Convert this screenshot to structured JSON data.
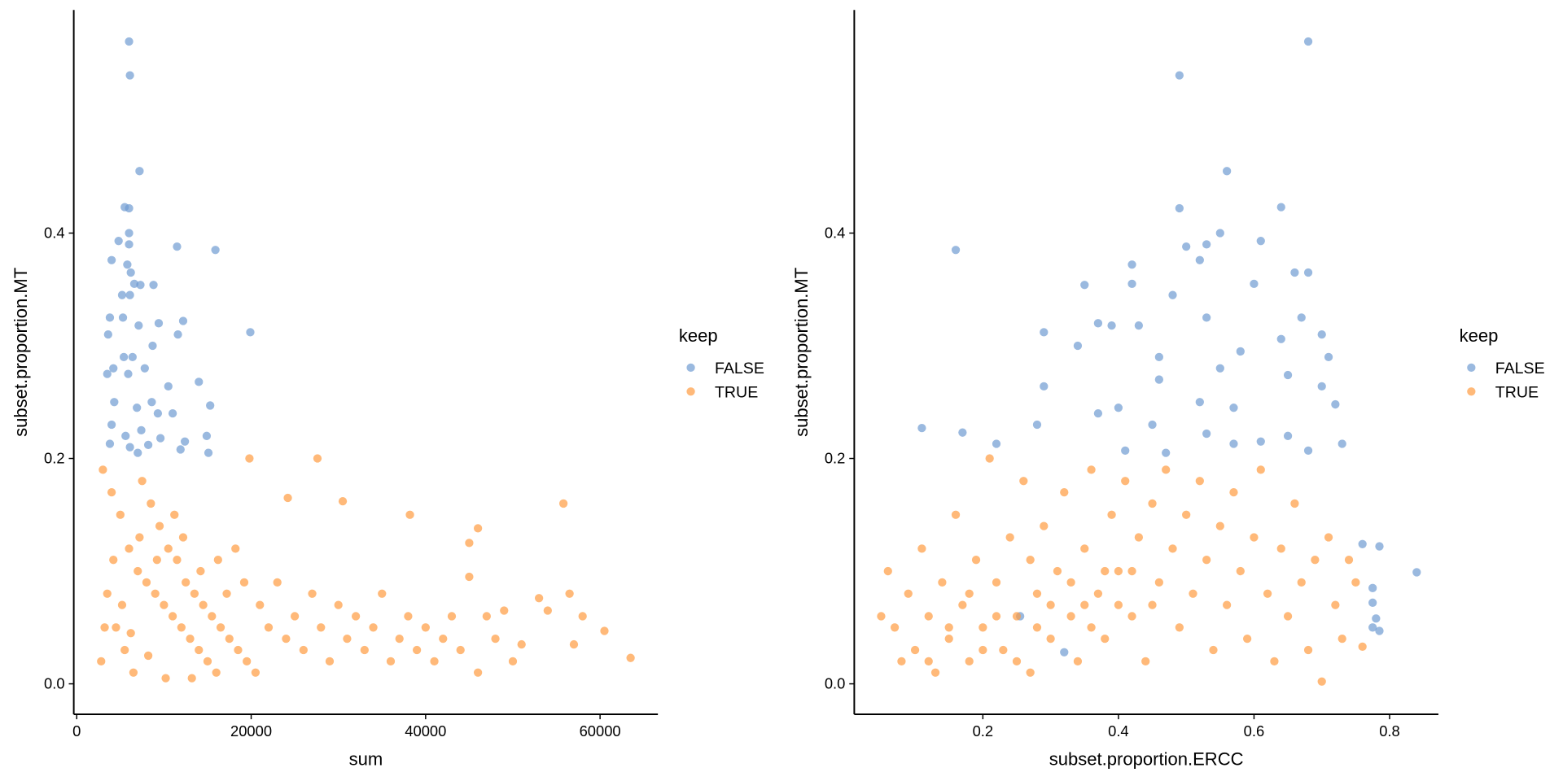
{
  "chart_data": [
    {
      "type": "scatter",
      "x_label": "sum",
      "y_label": "subset.proportion.MT",
      "legend_title": "keep",
      "xlim": [
        -340,
        66630
      ],
      "ylim": [
        -0.027,
        0.598
      ],
      "xticks": [
        0,
        20000,
        40000,
        60000
      ],
      "yticks": [
        {
          "value": 0,
          "label": "0.0"
        },
        0.2,
        0.4
      ],
      "grid": false,
      "series": [
        {
          "name": "FALSE",
          "color": "#6f9bd1",
          "x": [
            6000,
            6100,
            7200,
            5500,
            6000,
            4800,
            6000,
            11500,
            15900,
            6000,
            4000,
            5800,
            6200,
            6600,
            7300,
            8800,
            5200,
            6100,
            3800,
            5300,
            7100,
            9400,
            12200,
            19900,
            3600,
            11600,
            8700,
            5400,
            6400,
            4200,
            5900,
            7800,
            14000,
            3500,
            10500,
            4300,
            8600,
            6900,
            15300,
            9300,
            11000,
            4000,
            7400,
            12400,
            5600,
            14900,
            3800,
            6100,
            8200,
            11900,
            15100,
            7000,
            9600
          ],
          "values": [
            0.57,
            0.54,
            0.455,
            0.423,
            0.422,
            0.393,
            0.4,
            0.388,
            0.385,
            0.39,
            0.376,
            0.372,
            0.365,
            0.355,
            0.354,
            0.354,
            0.345,
            0.345,
            0.325,
            0.325,
            0.318,
            0.32,
            0.322,
            0.312,
            0.31,
            0.31,
            0.3,
            0.29,
            0.29,
            0.28,
            0.275,
            0.28,
            0.268,
            0.275,
            0.264,
            0.25,
            0.25,
            0.245,
            0.247,
            0.24,
            0.24,
            0.23,
            0.225,
            0.215,
            0.22,
            0.22,
            0.213,
            0.21,
            0.212,
            0.208,
            0.205,
            0.205,
            0.218
          ]
        },
        {
          "name": "TRUE",
          "color": "#ff9b40",
          "x": [
            3000,
            4000,
            5000,
            6000,
            7000,
            8000,
            9000,
            10000,
            11000,
            12000,
            13000,
            14000,
            15000,
            16000,
            3500,
            4500,
            5500,
            6500,
            7500,
            8500,
            9500,
            10500,
            11500,
            12500,
            13500,
            14500,
            15500,
            16500,
            17500,
            18500,
            19500,
            20500,
            21000,
            22000,
            23000,
            24000,
            25000,
            26000,
            27000,
            28000,
            29000,
            30000,
            31000,
            32000,
            33000,
            34000,
            35000,
            36000,
            37000,
            38000,
            39000,
            40000,
            41000,
            42000,
            43000,
            44000,
            45000,
            46000,
            47000,
            48000,
            49000,
            50000,
            51000,
            53000,
            54000,
            55800,
            56500,
            57000,
            58000,
            60500,
            63500,
            38200,
            46000,
            45000,
            27600,
            19800,
            30500,
            24200,
            2800,
            3200,
            4200,
            5200,
            6200,
            7200,
            8200,
            9200,
            10200,
            11200,
            12200,
            13200,
            14200,
            16200,
            17200,
            18200,
            19200
          ],
          "values": [
            0.19,
            0.17,
            0.15,
            0.12,
            0.1,
            0.09,
            0.08,
            0.07,
            0.06,
            0.05,
            0.04,
            0.03,
            0.02,
            0.01,
            0.08,
            0.05,
            0.03,
            0.01,
            0.18,
            0.16,
            0.14,
            0.12,
            0.11,
            0.09,
            0.08,
            0.07,
            0.06,
            0.05,
            0.04,
            0.03,
            0.02,
            0.01,
            0.07,
            0.05,
            0.09,
            0.04,
            0.06,
            0.03,
            0.08,
            0.05,
            0.02,
            0.07,
            0.04,
            0.06,
            0.03,
            0.05,
            0.08,
            0.02,
            0.04,
            0.06,
            0.03,
            0.05,
            0.02,
            0.04,
            0.06,
            0.03,
            0.095,
            0.01,
            0.06,
            0.04,
            0.065,
            0.02,
            0.035,
            0.076,
            0.065,
            0.16,
            0.08,
            0.035,
            0.06,
            0.047,
            0.023,
            0.15,
            0.138,
            0.125,
            0.2,
            0.2,
            0.162,
            0.165,
            0.02,
            0.05,
            0.11,
            0.07,
            0.045,
            0.13,
            0.025,
            0.11,
            0.005,
            0.15,
            0.13,
            0.005,
            0.1,
            0.11,
            0.08,
            0.12,
            0.09
          ]
        }
      ]
    },
    {
      "type": "scatter",
      "x_label": "subset.proportion.ERCC",
      "y_label": "subset.proportion.MT",
      "legend_title": "keep",
      "xlim": [
        0.0103,
        0.872
      ],
      "ylim": [
        -0.027,
        0.598
      ],
      "xticks": [
        0.2,
        0.4,
        0.6,
        0.8
      ],
      "yticks": [
        {
          "value": 0,
          "label": "0.0"
        },
        0.2,
        0.4
      ],
      "grid": false,
      "series": [
        {
          "name": "FALSE",
          "color": "#6f9bd1",
          "x": [
            0.68,
            0.49,
            0.56,
            0.64,
            0.49,
            0.16,
            0.55,
            0.61,
            0.5,
            0.53,
            0.42,
            0.52,
            0.66,
            0.68,
            0.6,
            0.35,
            0.42,
            0.48,
            0.53,
            0.37,
            0.39,
            0.43,
            0.67,
            0.29,
            0.7,
            0.34,
            0.46,
            0.55,
            0.58,
            0.71,
            0.64,
            0.29,
            0.46,
            0.65,
            0.7,
            0.4,
            0.52,
            0.57,
            0.72,
            0.11,
            0.17,
            0.28,
            0.37,
            0.45,
            0.53,
            0.61,
            0.65,
            0.73,
            0.22,
            0.41,
            0.47,
            0.57,
            0.68,
            0.76,
            0.785,
            0.84,
            0.775,
            0.775,
            0.78,
            0.775,
            0.785,
            0.255,
            0.32
          ],
          "values": [
            0.57,
            0.54,
            0.455,
            0.423,
            0.422,
            0.385,
            0.4,
            0.393,
            0.388,
            0.39,
            0.372,
            0.376,
            0.365,
            0.365,
            0.355,
            0.354,
            0.355,
            0.345,
            0.325,
            0.32,
            0.318,
            0.318,
            0.325,
            0.312,
            0.31,
            0.3,
            0.29,
            0.28,
            0.295,
            0.29,
            0.306,
            0.264,
            0.27,
            0.274,
            0.264,
            0.245,
            0.25,
            0.245,
            0.248,
            0.227,
            0.223,
            0.23,
            0.24,
            0.23,
            0.222,
            0.215,
            0.22,
            0.213,
            0.213,
            0.207,
            0.205,
            0.213,
            0.207,
            0.124,
            0.122,
            0.099,
            0.085,
            0.072,
            0.058,
            0.05,
            0.047,
            0.06,
            0.028
          ]
        },
        {
          "name": "TRUE",
          "color": "#ff9b40",
          "x": [
            0.06,
            0.07,
            0.08,
            0.09,
            0.1,
            0.11,
            0.12,
            0.13,
            0.14,
            0.15,
            0.16,
            0.17,
            0.18,
            0.19,
            0.2,
            0.21,
            0.22,
            0.23,
            0.24,
            0.25,
            0.26,
            0.27,
            0.28,
            0.29,
            0.3,
            0.31,
            0.32,
            0.33,
            0.34,
            0.35,
            0.36,
            0.37,
            0.38,
            0.39,
            0.4,
            0.41,
            0.42,
            0.43,
            0.44,
            0.45,
            0.46,
            0.47,
            0.48,
            0.49,
            0.5,
            0.51,
            0.52,
            0.53,
            0.54,
            0.55,
            0.56,
            0.57,
            0.58,
            0.59,
            0.6,
            0.61,
            0.62,
            0.63,
            0.64,
            0.65,
            0.66,
            0.67,
            0.68,
            0.69,
            0.7,
            0.71,
            0.72,
            0.73,
            0.74,
            0.75,
            0.76,
            0.2,
            0.22,
            0.25,
            0.28,
            0.3,
            0.33,
            0.36,
            0.38,
            0.4,
            0.15,
            0.12,
            0.18,
            0.27,
            0.35,
            0.45,
            0.42,
            0.05
          ],
          "values": [
            0.1,
            0.05,
            0.02,
            0.08,
            0.03,
            0.12,
            0.06,
            0.01,
            0.09,
            0.04,
            0.15,
            0.07,
            0.02,
            0.11,
            0.05,
            0.2,
            0.09,
            0.03,
            0.13,
            0.06,
            0.18,
            0.01,
            0.08,
            0.14,
            0.04,
            0.1,
            0.17,
            0.06,
            0.02,
            0.12,
            0.19,
            0.08,
            0.04,
            0.15,
            0.1,
            0.18,
            0.06,
            0.13,
            0.02,
            0.16,
            0.09,
            0.19,
            0.12,
            0.05,
            0.15,
            0.08,
            0.18,
            0.11,
            0.03,
            0.14,
            0.07,
            0.17,
            0.1,
            0.04,
            0.13,
            0.19,
            0.08,
            0.02,
            0.12,
            0.06,
            0.16,
            0.09,
            0.03,
            0.11,
            0.002,
            0.13,
            0.07,
            0.04,
            0.11,
            0.09,
            0.033,
            0.03,
            0.06,
            0.02,
            0.05,
            0.07,
            0.09,
            0.05,
            0.1,
            0.07,
            0.05,
            0.02,
            0.08,
            0.11,
            0.07,
            0.07,
            0.1,
            0.06
          ]
        }
      ]
    }
  ]
}
